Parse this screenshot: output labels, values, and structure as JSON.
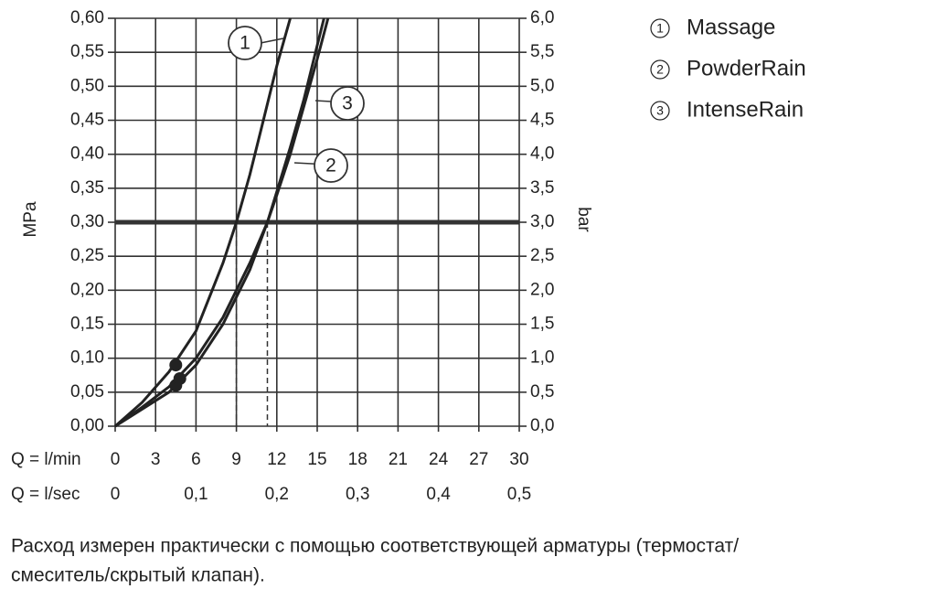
{
  "chart_data": {
    "type": "line",
    "xlabel": "Q = l/min",
    "x2label": "Q = l/sec",
    "ylabel": "MPa",
    "y2label": "bar",
    "xlim": [
      0,
      30
    ],
    "xticks": [
      0,
      3,
      6,
      9,
      12,
      15,
      18,
      21,
      24,
      27,
      30
    ],
    "x2lim": [
      0,
      0.5
    ],
    "x2ticks": [
      {
        "value": 0,
        "label": "0"
      },
      {
        "value": 0.1,
        "label": "0,1"
      },
      {
        "value": 0.2,
        "label": "0,2"
      },
      {
        "value": 0.3,
        "label": "0,3"
      },
      {
        "value": 0.4,
        "label": "0,4"
      },
      {
        "value": 0.5,
        "label": "0,5"
      }
    ],
    "ylim": [
      0,
      0.6
    ],
    "yticks": [
      {
        "value": 0,
        "label": "0,00"
      },
      {
        "value": 0.05,
        "label": "0,05"
      },
      {
        "value": 0.1,
        "label": "0,10"
      },
      {
        "value": 0.15,
        "label": "0,15"
      },
      {
        "value": 0.2,
        "label": "0,20"
      },
      {
        "value": 0.25,
        "label": "0,25"
      },
      {
        "value": 0.3,
        "label": "0,30"
      },
      {
        "value": 0.35,
        "label": "0,35"
      },
      {
        "value": 0.4,
        "label": "0,40"
      },
      {
        "value": 0.45,
        "label": "0,45"
      },
      {
        "value": 0.5,
        "label": "0,50"
      },
      {
        "value": 0.55,
        "label": "0,55"
      },
      {
        "value": 0.6,
        "label": "0,60"
      }
    ],
    "y2lim": [
      0,
      6
    ],
    "y2ticks": [
      {
        "value": 0,
        "label": "0,0"
      },
      {
        "value": 0.5,
        "label": "0,5"
      },
      {
        "value": 1,
        "label": "1,0"
      },
      {
        "value": 1.5,
        "label": "1,5"
      },
      {
        "value": 2,
        "label": "2,0"
      },
      {
        "value": 2.5,
        "label": "2,5"
      },
      {
        "value": 3,
        "label": "3,0"
      },
      {
        "value": 3.5,
        "label": "3,5"
      },
      {
        "value": 4,
        "label": "4,0"
      },
      {
        "value": 4.5,
        "label": "4,5"
      },
      {
        "value": 5,
        "label": "5,0"
      },
      {
        "value": 5.5,
        "label": "5,5"
      },
      {
        "value": 6,
        "label": "6,0"
      }
    ],
    "grid": true,
    "reference_y": 0.3,
    "drop_lines": [
      9,
      11.3
    ],
    "series": [
      {
        "name": "Massage",
        "label": "1",
        "color": "#222222",
        "x": [
          0,
          2,
          4,
          6,
          8,
          9,
          10,
          11,
          12,
          13
        ],
        "values": [
          0,
          0.035,
          0.08,
          0.14,
          0.24,
          0.3,
          0.37,
          0.45,
          0.53,
          0.6
        ],
        "marker": {
          "x": 4.5,
          "y": 0.09
        }
      },
      {
        "name": "PowderRain",
        "label": "2",
        "color": "#222222",
        "x": [
          0,
          2,
          4,
          6,
          8,
          10,
          11.3,
          12,
          13,
          14,
          15,
          15.8
        ],
        "values": [
          0,
          0.025,
          0.05,
          0.09,
          0.15,
          0.23,
          0.3,
          0.34,
          0.4,
          0.47,
          0.54,
          0.6
        ],
        "marker": {
          "x": 4.5,
          "y": 0.06
        }
      },
      {
        "name": "IntenseRain",
        "label": "3",
        "color": "#222222",
        "x": [
          0,
          2,
          4,
          6,
          8,
          10,
          11.3,
          12,
          13,
          14,
          15,
          15.5
        ],
        "values": [
          0,
          0.028,
          0.058,
          0.1,
          0.16,
          0.24,
          0.3,
          0.345,
          0.41,
          0.48,
          0.56,
          0.6
        ],
        "marker": {
          "x": 4.8,
          "y": 0.07
        }
      }
    ],
    "note_lines": [
      "Расход измерен практически с помощью соответствующей арматуры (термостат/",
      "смеситель/скрытый клапан)."
    ]
  }
}
